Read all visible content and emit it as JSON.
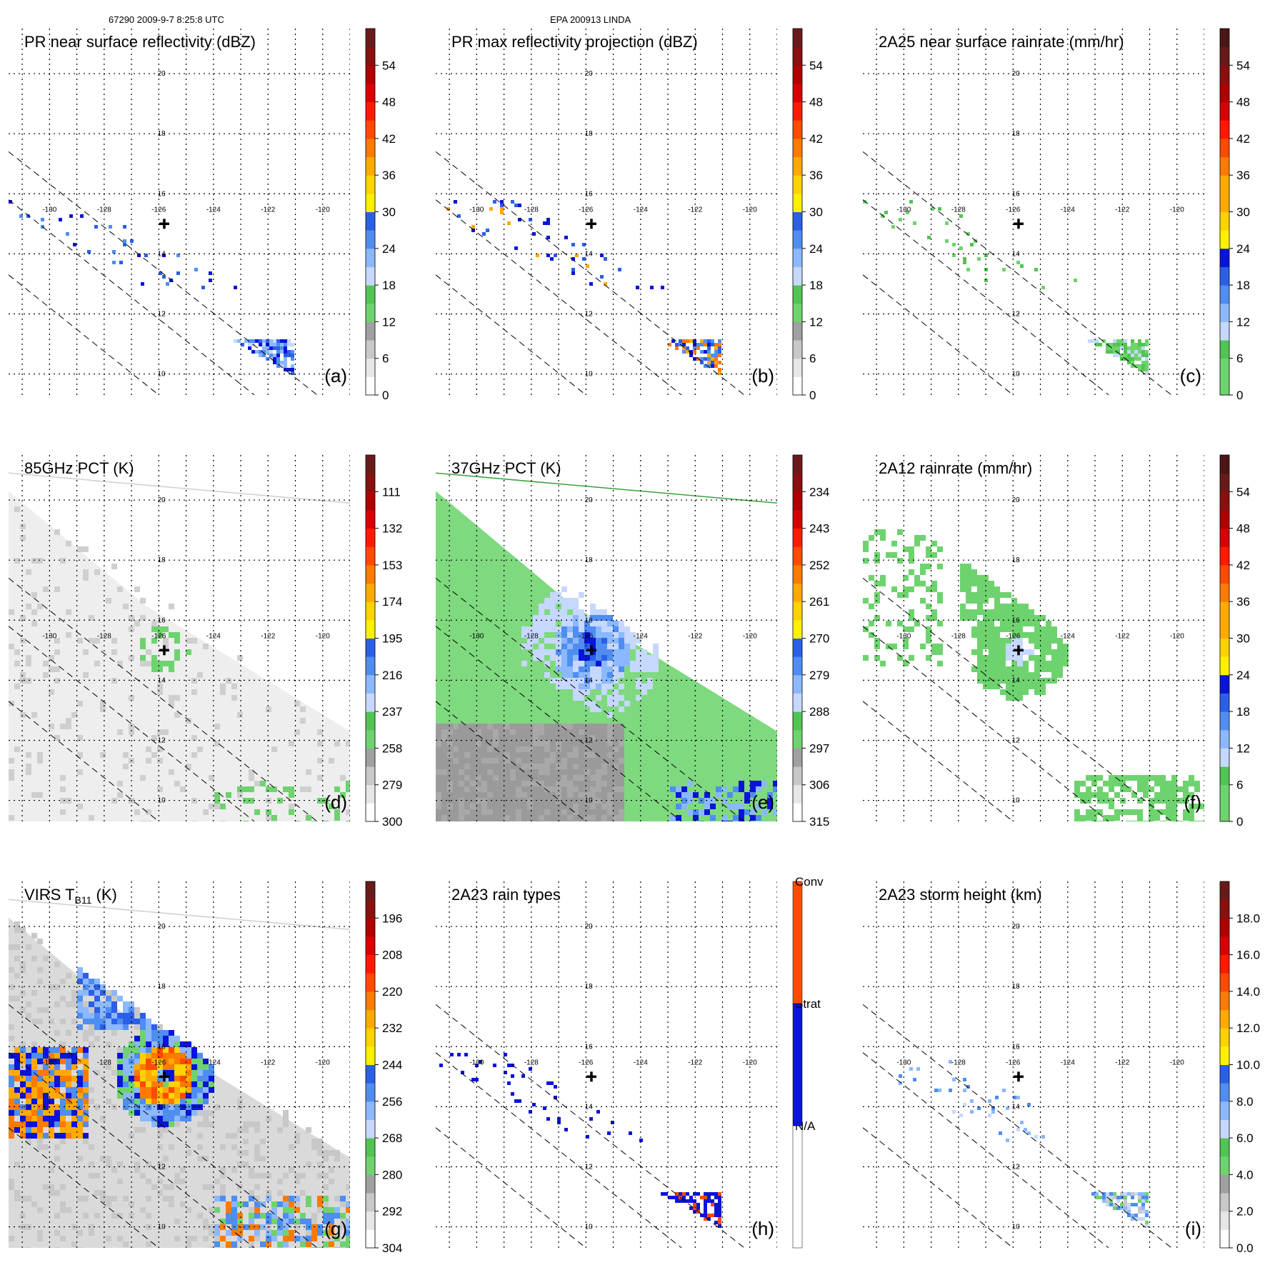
{
  "header": {
    "left": "67290 2009-9-7 8:25:8 UTC",
    "center": "EPA 200913 LINDA"
  },
  "center_marker": {
    "lon": -125.8,
    "lat": 15.0
  },
  "colors": {
    "dbz": [
      "#ffffff",
      "#e6e6e6",
      "#c8c8c8",
      "#a0a0a0",
      "#6ed36e",
      "#52c452",
      "#c6d8ff",
      "#8bb8ff",
      "#4f8ef0",
      "#2c5fe8",
      "#0a14d8",
      "#fff000",
      "#ffd200",
      "#ffaa00",
      "#ff7a00",
      "#ff4a00",
      "#ff1a00",
      "#d80000",
      "#b00000",
      "#8a1010",
      "#6a1a1a",
      "#4a1616"
    ],
    "rain": [
      "#6ed36e",
      "#52c452",
      "#c6d8ff",
      "#8bb8ff",
      "#4f8ef0",
      "#2c5fe8",
      "#0a14d8",
      "#fff000",
      "#ffd200",
      "#ffaa00",
      "#ff7a00",
      "#ff4a00",
      "#ff1a00",
      "#d80000",
      "#b00000",
      "#8a1010",
      "#6a1a1a",
      "#4a1616"
    ],
    "types": [
      "#ffffff",
      "#0a14d8",
      "#ff4a00"
    ]
  },
  "chart_data": [
    {
      "id": "a",
      "type": "heatmap",
      "title": "PR near surface reflectivity (dBZ)",
      "panel_label": "(a)",
      "cb_ticks": [
        "0",
        "6",
        "12",
        "18",
        "24",
        "30",
        "36",
        "42",
        "48",
        "54"
      ],
      "cb_min": 0,
      "cb_max": 60,
      "cb_palette": "dbz",
      "lon_labels": [
        "-130",
        "-128",
        "-126",
        "-124",
        "-122",
        "-120"
      ],
      "lat_labels": [
        "10",
        "12",
        "14",
        "16",
        "18",
        "20"
      ],
      "swath": "narrow",
      "field": "pr_near",
      "xlim": [
        -131.5,
        -119
      ],
      "ylim": [
        9.3,
        21.5
      ]
    },
    {
      "id": "b",
      "type": "heatmap",
      "title": "PR max reflectivity projection (dBZ)",
      "panel_label": "(b)",
      "cb_ticks": [
        "0",
        "6",
        "12",
        "18",
        "24",
        "30",
        "36",
        "42",
        "48",
        "54"
      ],
      "cb_min": 0,
      "cb_max": 60,
      "cb_palette": "dbz",
      "lon_labels": [
        "-130",
        "-128",
        "-126",
        "-124",
        "-122",
        "-120"
      ],
      "lat_labels": [
        "10",
        "12",
        "14",
        "16",
        "18",
        "20"
      ],
      "swath": "narrow",
      "field": "pr_max",
      "xlim": [
        -131.5,
        -119
      ],
      "ylim": [
        9.3,
        21.5
      ]
    },
    {
      "id": "c",
      "type": "heatmap",
      "title": "2A25 near surface rainrate (mm/hr)",
      "panel_label": "(c)",
      "cb_ticks": [
        "0",
        "6",
        "12",
        "18",
        "24",
        "30",
        "36",
        "42",
        "48",
        "54"
      ],
      "cb_min": 0,
      "cb_max": 60,
      "cb_palette": "rain",
      "lon_labels": [
        "-130",
        "-128",
        "-126",
        "-124",
        "-122",
        "-120"
      ],
      "lat_labels": [
        "10",
        "12",
        "14",
        "16",
        "18",
        "20"
      ],
      "swath": "narrow",
      "field": "rain_2a25",
      "xlim": [
        -131.5,
        -119
      ],
      "ylim": [
        9.3,
        21.5
      ]
    },
    {
      "id": "d",
      "type": "heatmap",
      "title": "85GHz PCT (K)",
      "panel_label": "(d)",
      "cb_ticks": [
        "300",
        "279",
        "258",
        "237",
        "216",
        "195",
        "174",
        "153",
        "132",
        "111"
      ],
      "cb_min": 300,
      "cb_max": 90,
      "cb_palette": "dbz",
      "lon_labels": [
        "-130",
        "-128",
        "-126",
        "-124",
        "-122",
        "-120"
      ],
      "lat_labels": [
        "10",
        "12",
        "14",
        "16",
        "18",
        "20"
      ],
      "swath": "wide",
      "field": "pct85",
      "xlim": [
        -131.5,
        -119
      ],
      "ylim": [
        9.3,
        21.5
      ]
    },
    {
      "id": "e",
      "type": "heatmap",
      "title": "37GHz PCT (K)",
      "panel_label": "(e)",
      "cb_ticks": [
        "315",
        "306",
        "297",
        "288",
        "279",
        "270",
        "261",
        "252",
        "243",
        "234"
      ],
      "cb_min": 315,
      "cb_max": 225,
      "cb_palette": "dbz",
      "lon_labels": [
        "-130",
        "-128",
        "-126",
        "-124",
        "-122",
        "-120"
      ],
      "lat_labels": [
        "10",
        "12",
        "14",
        "16",
        "18",
        "20"
      ],
      "swath": "wide",
      "field": "pct37",
      "xlim": [
        -131.5,
        -119
      ],
      "ylim": [
        9.3,
        21.5
      ]
    },
    {
      "id": "f",
      "type": "heatmap",
      "title": "2A12 rainrate (mm/hr)",
      "panel_label": "(f)",
      "cb_ticks": [
        "0",
        "6",
        "12",
        "18",
        "24",
        "30",
        "36",
        "42",
        "48",
        "54"
      ],
      "cb_min": 0,
      "cb_max": 60,
      "cb_palette": "rain",
      "lon_labels": [
        "-130",
        "-128",
        "-126",
        "-124",
        "-122",
        "-120"
      ],
      "lat_labels": [
        "10",
        "12",
        "14",
        "16",
        "18",
        "20"
      ],
      "swath": "wide",
      "field": "rain_2a12",
      "xlim": [
        -131.5,
        -119
      ],
      "ylim": [
        9.3,
        21.5
      ]
    },
    {
      "id": "g",
      "type": "heatmap",
      "title": "VIRS T",
      "title_sub": "B11",
      "title_end": " (K)",
      "panel_label": "(g)",
      "cb_ticks": [
        "304",
        "292",
        "280",
        "268",
        "256",
        "244",
        "232",
        "220",
        "208",
        "196"
      ],
      "cb_min": 304,
      "cb_max": 184,
      "cb_palette": "dbz",
      "lon_labels": [
        "-130",
        "-128",
        "-126",
        "-124",
        "-122",
        "-120"
      ],
      "lat_labels": [
        "10",
        "12",
        "14",
        "16",
        "18",
        "20"
      ],
      "swath": "wide",
      "field": "virs",
      "xlim": [
        -131.5,
        -119
      ],
      "ylim": [
        9.3,
        21.5
      ]
    },
    {
      "id": "h",
      "type": "heatmap",
      "title": "2A23 rain types",
      "panel_label": "(h)",
      "cb_categories": [
        "N/A",
        "Strat",
        "Conv"
      ],
      "cb_palette": "types",
      "lon_labels": [
        "-130",
        "-128",
        "-126",
        "-124",
        "-122",
        "-120"
      ],
      "lat_labels": [
        "10",
        "12",
        "14",
        "16",
        "18",
        "20"
      ],
      "swath": "narrow",
      "field": "types",
      "xlim": [
        -131.5,
        -119
      ],
      "ylim": [
        9.3,
        21.5
      ]
    },
    {
      "id": "i",
      "type": "heatmap",
      "title": "2A23 storm height (km)",
      "panel_label": "(i)",
      "cb_ticks": [
        "0.0",
        "2.0",
        "4.0",
        "6.0",
        "8.0",
        "10.0",
        "12.0",
        "14.0",
        "16.0",
        "18.0"
      ],
      "cb_min": 0,
      "cb_max": 20,
      "cb_palette": "dbz",
      "lon_labels": [
        "-130",
        "-128",
        "-126",
        "-124",
        "-122",
        "-120"
      ],
      "lat_labels": [
        "10",
        "12",
        "14",
        "16",
        "18",
        "20"
      ],
      "swath": "narrow",
      "field": "height",
      "xlim": [
        -131.5,
        -119
      ],
      "ylim": [
        9.3,
        21.5
      ]
    }
  ]
}
